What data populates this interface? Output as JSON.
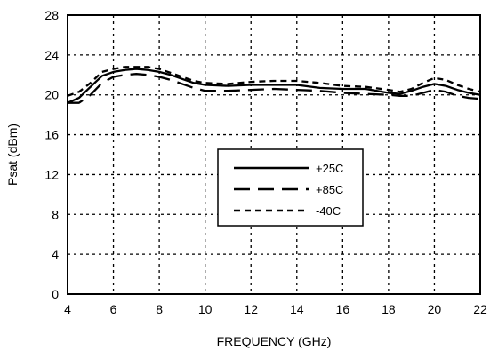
{
  "chart_data": {
    "type": "line",
    "xlabel": "FREQUENCY (GHz)",
    "ylabel": "Psat (dBm)",
    "xlim": [
      4,
      22
    ],
    "ylim": [
      0,
      28
    ],
    "xticks": [
      4,
      6,
      8,
      10,
      12,
      14,
      16,
      18,
      20,
      22
    ],
    "yticks": [
      0,
      4,
      8,
      12,
      16,
      20,
      24,
      28
    ],
    "grid": true,
    "legend_position": "center-right",
    "series": [
      {
        "name": "+25C",
        "style": "solid",
        "x": [
          4,
          4.5,
          5,
          5.5,
          6,
          6.5,
          7,
          7.5,
          8,
          8.5,
          9,
          9.5,
          10,
          11,
          12,
          13,
          14,
          15,
          16,
          17,
          18,
          18.5,
          19,
          19.5,
          20,
          20.5,
          21,
          21.5,
          22
        ],
        "y": [
          19.2,
          19.7,
          20.8,
          21.9,
          22.3,
          22.5,
          22.6,
          22.5,
          22.3,
          22.0,
          21.6,
          21.2,
          21.0,
          20.9,
          21.0,
          21.0,
          21.0,
          20.7,
          20.6,
          20.6,
          20.2,
          20.1,
          20.4,
          20.8,
          21.1,
          20.9,
          20.5,
          20.2,
          20.0
        ]
      },
      {
        "name": "+85C",
        "style": "long-dash",
        "x": [
          4,
          4.5,
          5,
          5.5,
          6,
          6.5,
          7,
          7.5,
          8,
          8.5,
          9,
          9.5,
          10,
          11,
          12,
          13,
          14,
          15,
          16,
          17,
          18,
          18.5,
          19,
          19.5,
          20,
          20.5,
          21,
          21.5,
          22
        ],
        "y": [
          19.2,
          19.2,
          20.0,
          21.2,
          21.8,
          22.0,
          22.1,
          22.0,
          21.8,
          21.5,
          21.1,
          20.7,
          20.4,
          20.4,
          20.5,
          20.6,
          20.5,
          20.4,
          20.2,
          20.1,
          20.0,
          19.9,
          19.9,
          20.2,
          20.5,
          20.3,
          19.9,
          19.7,
          19.6
        ]
      },
      {
        "name": "-40C",
        "style": "short-dash",
        "x": [
          4,
          4.5,
          5,
          5.5,
          6,
          6.5,
          7,
          7.5,
          8,
          8.5,
          9,
          9.5,
          10,
          11,
          12,
          13,
          14,
          15,
          16,
          17,
          18,
          18.5,
          19,
          19.5,
          20,
          20.5,
          21,
          21.5,
          22
        ],
        "y": [
          19.9,
          20.3,
          21.2,
          22.3,
          22.6,
          22.8,
          22.8,
          22.8,
          22.6,
          22.2,
          21.8,
          21.4,
          21.2,
          21.1,
          21.3,
          21.4,
          21.4,
          21.2,
          20.9,
          20.8,
          20.5,
          20.3,
          20.6,
          21.2,
          21.7,
          21.5,
          21.0,
          20.6,
          20.3
        ]
      }
    ],
    "colors": {
      "line": "#000000",
      "background": "#ffffff",
      "grid": "#000000"
    }
  }
}
